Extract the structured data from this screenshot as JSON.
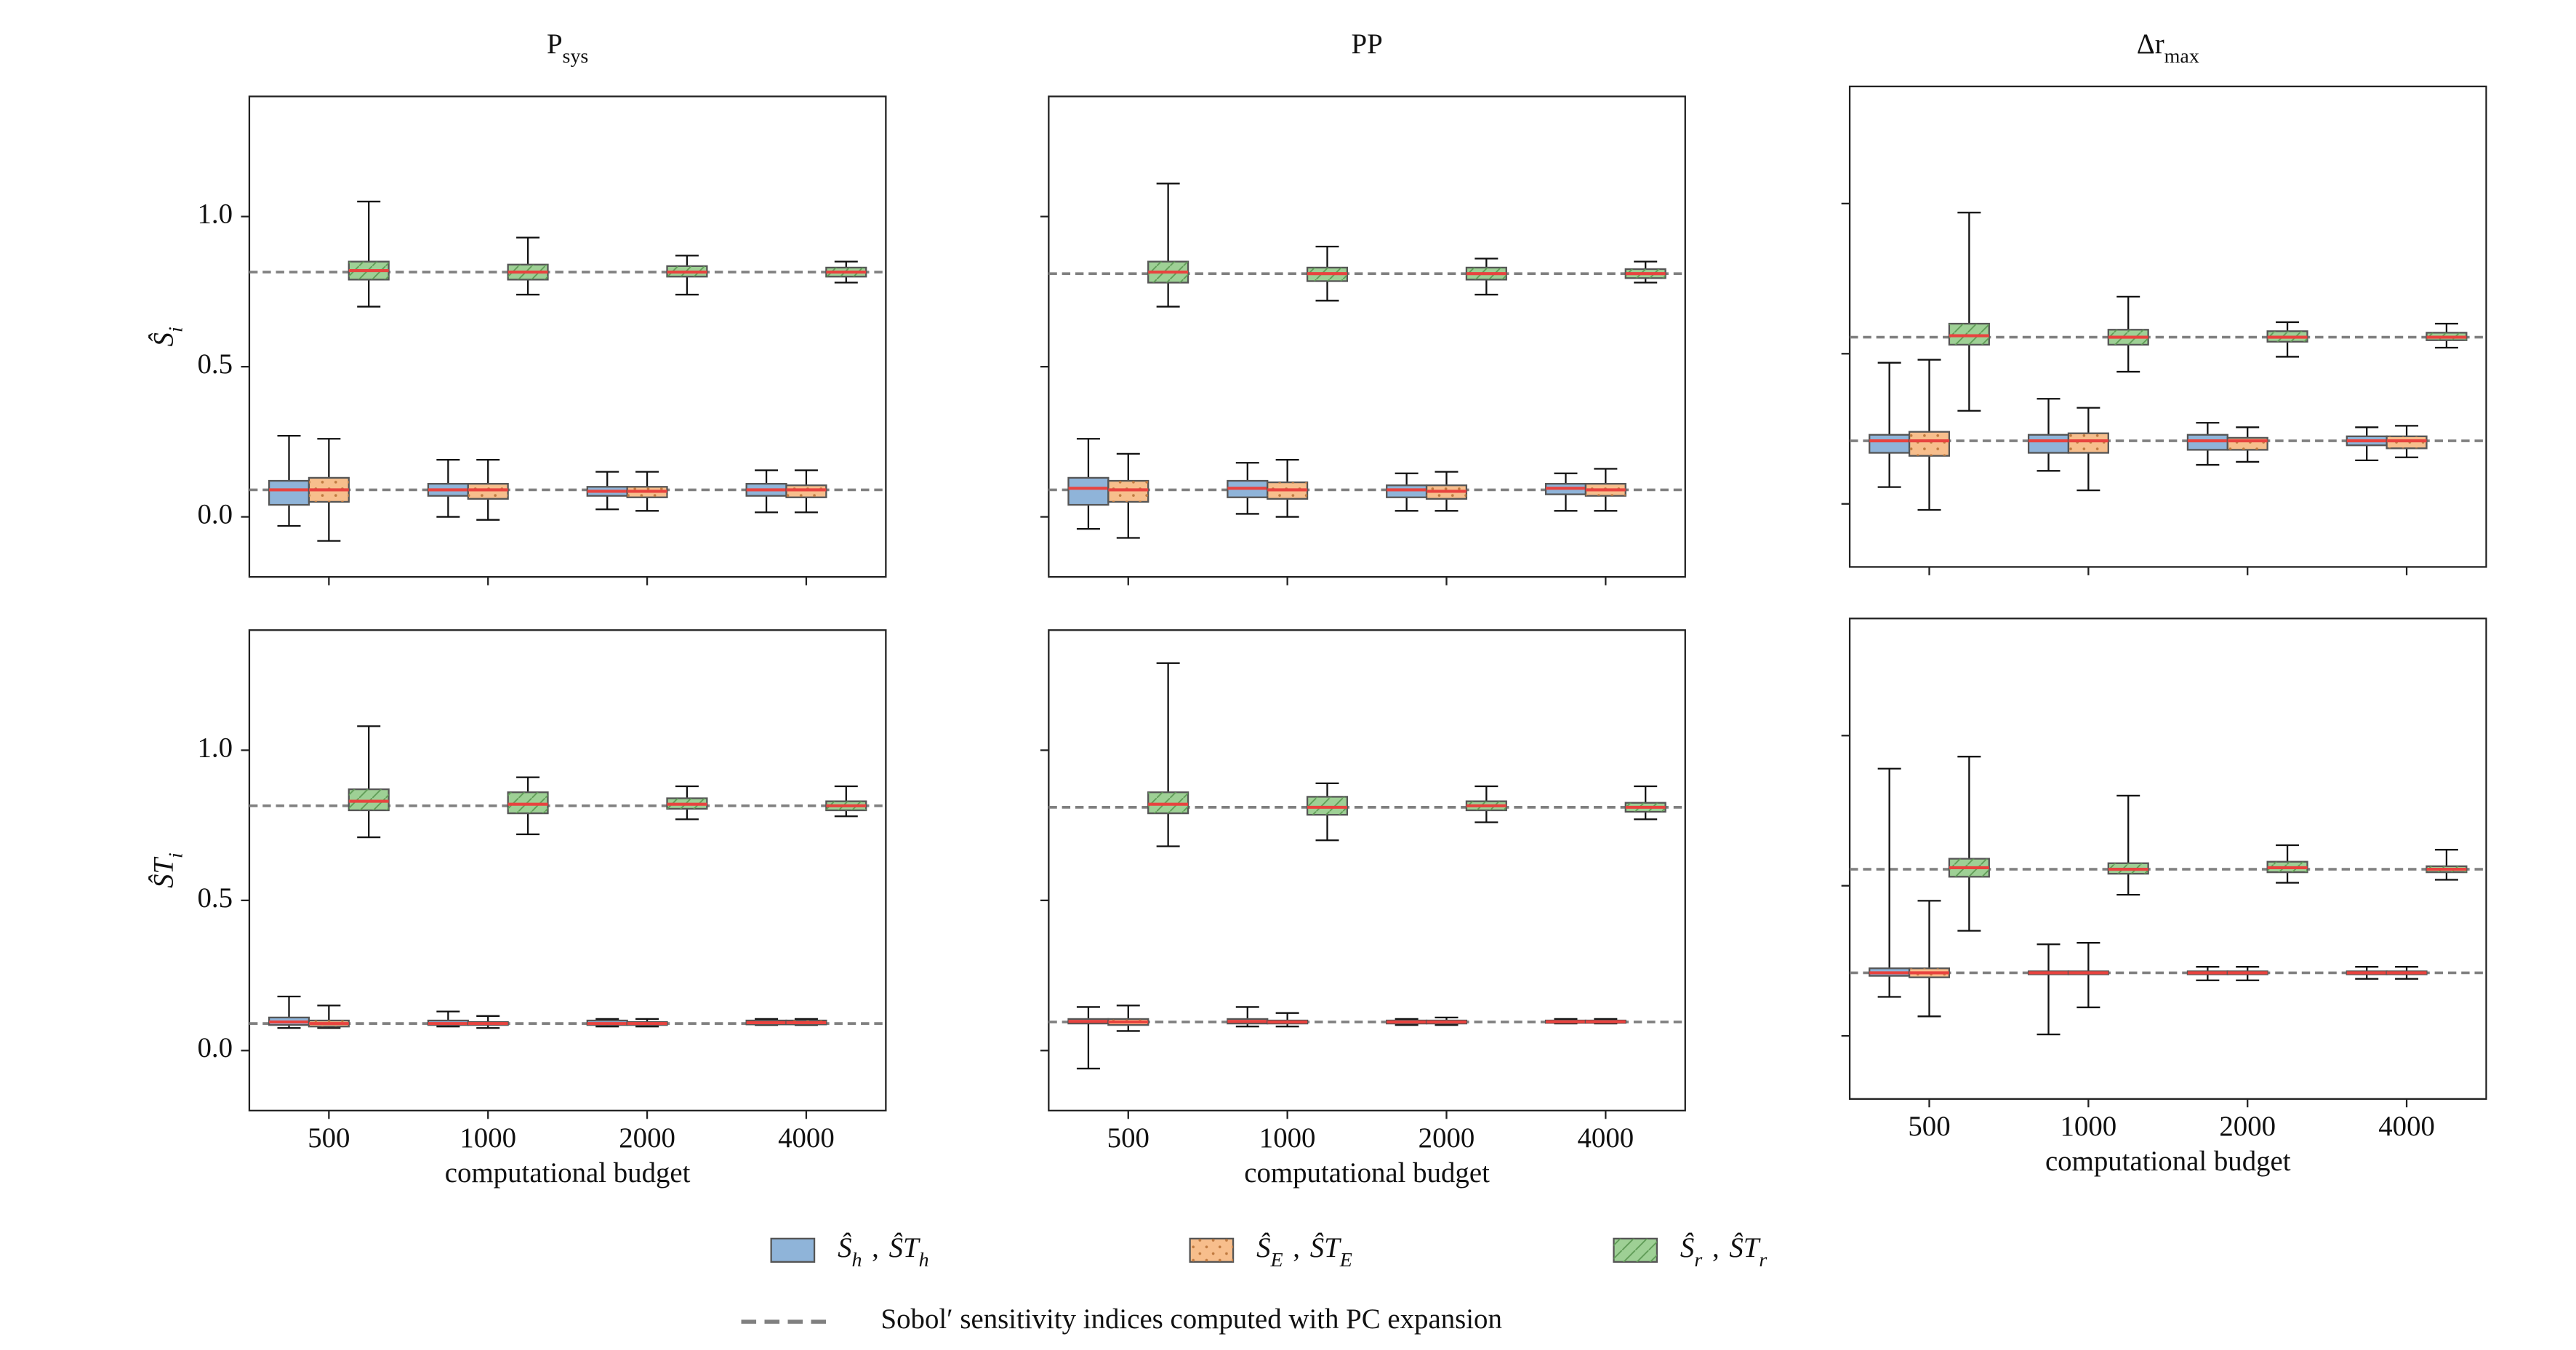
{
  "chart_data": [
    {
      "type": "box",
      "title": "P",
      "title_sub": "sys",
      "ylabel": "Ŝ",
      "ylabel_sub": "i",
      "categories": [
        "500",
        "1000",
        "2000",
        "4000"
      ],
      "ylim": [
        -0.2,
        1.4
      ],
      "yticks": [
        {
          "value": 0,
          "label": "0.0"
        },
        {
          "value": 0.5,
          "label": "0.5"
        },
        {
          "value": 1,
          "label": "1.0"
        }
      ],
      "show_ytick_labels": true,
      "show_xtick_labels": false,
      "reference_lines": [
        0.815,
        0.09
      ],
      "series": [
        {
          "whislo": [
            -0.03,
            0.0,
            0.025,
            0.015
          ],
          "q1": [
            0.04,
            0.07,
            0.07,
            0.07
          ],
          "med": [
            0.09,
            0.09,
            0.085,
            0.09
          ],
          "q3": [
            0.12,
            0.11,
            0.1,
            0.11
          ],
          "whishi": [
            0.27,
            0.19,
            0.15,
            0.155
          ]
        },
        {
          "whislo": [
            -0.08,
            -0.01,
            0.02,
            0.015
          ],
          "q1": [
            0.05,
            0.06,
            0.065,
            0.065
          ],
          "med": [
            0.09,
            0.09,
            0.085,
            0.09
          ],
          "q3": [
            0.13,
            0.11,
            0.1,
            0.105
          ],
          "whishi": [
            0.26,
            0.19,
            0.15,
            0.155
          ]
        },
        {
          "whislo": [
            0.7,
            0.74,
            0.74,
            0.78
          ],
          "q1": [
            0.79,
            0.79,
            0.8,
            0.8
          ],
          "med": [
            0.82,
            0.815,
            0.815,
            0.815
          ],
          "q3": [
            0.85,
            0.84,
            0.835,
            0.83
          ],
          "whishi": [
            1.05,
            0.93,
            0.87,
            0.85
          ]
        }
      ]
    },
    {
      "type": "box",
      "title": "PP",
      "categories": [
        "500",
        "1000",
        "2000",
        "4000"
      ],
      "ylim": [
        -0.2,
        1.4
      ],
      "yticks": [
        0,
        0.5,
        1
      ],
      "show_ytick_labels": false,
      "show_xtick_labels": false,
      "reference_lines": [
        0.81,
        0.09
      ],
      "series": [
        {
          "whislo": [
            -0.04,
            0.01,
            0.02,
            0.02
          ],
          "q1": [
            0.04,
            0.065,
            0.065,
            0.075
          ],
          "med": [
            0.095,
            0.095,
            0.09,
            0.095
          ],
          "q3": [
            0.13,
            0.12,
            0.105,
            0.11
          ],
          "whishi": [
            0.26,
            0.18,
            0.145,
            0.145
          ]
        },
        {
          "whislo": [
            -0.07,
            0.0,
            0.02,
            0.02
          ],
          "q1": [
            0.05,
            0.06,
            0.06,
            0.07
          ],
          "med": [
            0.09,
            0.09,
            0.085,
            0.09
          ],
          "q3": [
            0.12,
            0.115,
            0.105,
            0.11
          ],
          "whishi": [
            0.21,
            0.19,
            0.15,
            0.16
          ]
        },
        {
          "whislo": [
            0.7,
            0.72,
            0.74,
            0.78
          ],
          "q1": [
            0.78,
            0.785,
            0.79,
            0.795
          ],
          "med": [
            0.815,
            0.81,
            0.81,
            0.81
          ],
          "q3": [
            0.85,
            0.83,
            0.83,
            0.825
          ],
          "whishi": [
            1.11,
            0.9,
            0.86,
            0.85
          ]
        }
      ]
    },
    {
      "type": "box",
      "title": "Δr",
      "title_sub": "max",
      "categories": [
        "500",
        "1000",
        "2000",
        "4000"
      ],
      "ylim": [
        -0.21,
        1.39
      ],
      "yticks": [
        0,
        0.5,
        1
      ],
      "show_ytick_labels": false,
      "show_xtick_labels": false,
      "reference_lines": [
        0.555,
        0.21
      ],
      "series": [
        {
          "whislo": [
            0.056,
            0.11,
            0.13,
            0.145
          ],
          "q1": [
            0.17,
            0.17,
            0.18,
            0.195
          ],
          "med": [
            0.21,
            0.21,
            0.21,
            0.21
          ],
          "q3": [
            0.23,
            0.23,
            0.23,
            0.225
          ],
          "whishi": [
            0.47,
            0.35,
            0.27,
            0.255
          ]
        },
        {
          "whislo": [
            -0.02,
            0.045,
            0.14,
            0.155
          ],
          "q1": [
            0.16,
            0.17,
            0.18,
            0.185
          ],
          "med": [
            0.21,
            0.21,
            0.21,
            0.21
          ],
          "q3": [
            0.24,
            0.235,
            0.22,
            0.225
          ],
          "whishi": [
            0.48,
            0.32,
            0.255,
            0.26
          ]
        },
        {
          "whislo": [
            0.31,
            0.44,
            0.49,
            0.52
          ],
          "q1": [
            0.53,
            0.53,
            0.54,
            0.545
          ],
          "med": [
            0.56,
            0.555,
            0.555,
            0.555
          ],
          "q3": [
            0.6,
            0.58,
            0.575,
            0.57
          ],
          "whishi": [
            0.97,
            0.69,
            0.605,
            0.6
          ]
        }
      ]
    },
    {
      "type": "box",
      "ylabel": "ŜT",
      "ylabel_sub": "i",
      "xlabel": "computational budget",
      "categories": [
        "500",
        "1000",
        "2000",
        "4000"
      ],
      "ylim": [
        -0.2,
        1.4
      ],
      "yticks": [
        {
          "value": 0,
          "label": "0.0"
        },
        {
          "value": 0.5,
          "label": "0.5"
        },
        {
          "value": 1,
          "label": "1.0"
        }
      ],
      "show_ytick_labels": true,
      "show_xtick_labels": true,
      "reference_lines": [
        0.815,
        0.09
      ],
      "series": [
        {
          "whislo": [
            0.075,
            0.08,
            0.08,
            0.085
          ],
          "q1": [
            0.085,
            0.085,
            0.085,
            0.087
          ],
          "med": [
            0.095,
            0.09,
            0.09,
            0.093
          ],
          "q3": [
            0.11,
            0.1,
            0.1,
            0.1
          ],
          "whishi": [
            0.18,
            0.13,
            0.105,
            0.105
          ]
        },
        {
          "whislo": [
            0.075,
            0.075,
            0.08,
            0.085
          ],
          "q1": [
            0.08,
            0.085,
            0.085,
            0.087
          ],
          "med": [
            0.09,
            0.09,
            0.09,
            0.093
          ],
          "q3": [
            0.1,
            0.095,
            0.095,
            0.1
          ],
          "whishi": [
            0.15,
            0.115,
            0.105,
            0.105
          ]
        },
        {
          "whislo": [
            0.71,
            0.72,
            0.77,
            0.78
          ],
          "q1": [
            0.8,
            0.79,
            0.805,
            0.8
          ],
          "med": [
            0.83,
            0.82,
            0.82,
            0.815
          ],
          "q3": [
            0.87,
            0.86,
            0.84,
            0.83
          ],
          "whishi": [
            1.08,
            0.91,
            0.88,
            0.88
          ]
        }
      ]
    },
    {
      "type": "box",
      "xlabel": "computational budget",
      "categories": [
        "500",
        "1000",
        "2000",
        "4000"
      ],
      "ylim": [
        -0.2,
        1.4
      ],
      "yticks": [
        0,
        0.5,
        1
      ],
      "show_ytick_labels": false,
      "show_xtick_labels": true,
      "reference_lines": [
        0.81,
        0.095
      ],
      "series": [
        {
          "whislo": [
            -0.06,
            0.08,
            0.085,
            0.09
          ],
          "q1": [
            0.09,
            0.09,
            0.09,
            0.092
          ],
          "med": [
            0.097,
            0.097,
            0.095,
            0.096
          ],
          "q3": [
            0.105,
            0.105,
            0.1,
            0.1
          ],
          "whishi": [
            0.145,
            0.145,
            0.105,
            0.105
          ]
        },
        {
          "whislo": [
            0.065,
            0.08,
            0.085,
            0.09
          ],
          "q1": [
            0.085,
            0.09,
            0.09,
            0.092
          ],
          "med": [
            0.095,
            0.095,
            0.095,
            0.096
          ],
          "q3": [
            0.105,
            0.1,
            0.1,
            0.1
          ],
          "whishi": [
            0.15,
            0.125,
            0.11,
            0.105
          ]
        },
        {
          "whislo": [
            0.68,
            0.7,
            0.76,
            0.77
          ],
          "q1": [
            0.79,
            0.785,
            0.8,
            0.795
          ],
          "med": [
            0.82,
            0.81,
            0.815,
            0.81
          ],
          "q3": [
            0.86,
            0.845,
            0.83,
            0.825
          ],
          "whishi": [
            1.29,
            0.89,
            0.88,
            0.88
          ]
        }
      ]
    },
    {
      "type": "box",
      "xlabel": "computational budget",
      "categories": [
        "500",
        "1000",
        "2000",
        "4000"
      ],
      "ylim": [
        -0.21,
        1.39
      ],
      "yticks": [
        0,
        0.5,
        1
      ],
      "show_ytick_labels": false,
      "show_xtick_labels": true,
      "reference_lines": [
        0.555,
        0.21
      ],
      "series": [
        {
          "whislo": [
            0.13,
            0.005,
            0.185,
            0.19
          ],
          "q1": [
            0.2,
            0.205,
            0.205,
            0.205
          ],
          "med": [
            0.21,
            0.21,
            0.21,
            0.21
          ],
          "q3": [
            0.225,
            0.215,
            0.215,
            0.215
          ],
          "whishi": [
            0.89,
            0.305,
            0.23,
            0.23
          ]
        },
        {
          "whislo": [
            0.065,
            0.095,
            0.185,
            0.19
          ],
          "q1": [
            0.195,
            0.205,
            0.205,
            0.205
          ],
          "med": [
            0.21,
            0.21,
            0.21,
            0.21
          ],
          "q3": [
            0.225,
            0.215,
            0.215,
            0.215
          ],
          "whishi": [
            0.45,
            0.31,
            0.23,
            0.23
          ]
        },
        {
          "whislo": [
            0.35,
            0.47,
            0.51,
            0.52
          ],
          "q1": [
            0.53,
            0.54,
            0.545,
            0.545
          ],
          "med": [
            0.56,
            0.555,
            0.56,
            0.555
          ],
          "q3": [
            0.59,
            0.575,
            0.58,
            0.565
          ],
          "whishi": [
            0.93,
            0.8,
            0.635,
            0.62
          ]
        }
      ]
    }
  ],
  "legend": {
    "separator": ",",
    "entries": [
      {
        "symbol": "Ŝ",
        "sub": "h",
        "symbol2": "ŜT",
        "sub2": "h",
        "color": "#8fb4d9",
        "hatch": "none"
      },
      {
        "symbol": "Ŝ",
        "sub": "E",
        "symbol2": "ŜT",
        "sub2": "E",
        "color": "#f7be8c",
        "hatch": ".."
      },
      {
        "symbol": "Ŝ",
        "sub": "r",
        "symbol2": "ŜT",
        "sub2": "r",
        "color": "#9ed095",
        "hatch": "/"
      }
    ],
    "reference_label": "Sobol′ sensitivity indices computed with PC expansion"
  },
  "style": {
    "median_color": "#e8433f",
    "reference_color": "#808080",
    "edge_color": "#555555"
  }
}
